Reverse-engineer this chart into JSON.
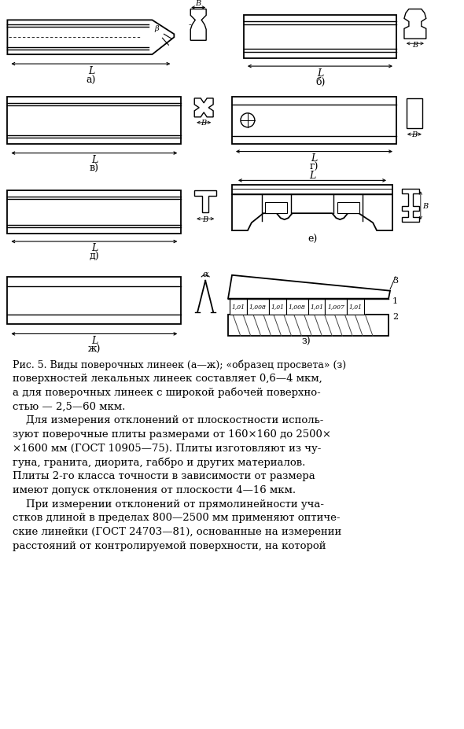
{
  "fig_width": 5.9,
  "fig_height": 9.28,
  "dpi": 100,
  "bg_color": "#ffffff",
  "caption": "Рис. 5. Виды поверочных линеек (а—ж); «образец просвета» (з)",
  "body_lines": [
    "поверхностей лекальных линеек составляет 0,6—4 мкм,",
    "а для поверочных линеек с широкой рабочей поверхно-",
    "стью — 2,5—60 мкм.",
    "    Для измерения отклонений от плоскостности исполь-",
    "зуют поверочные плиты размерами от 160×160 до 2500×",
    "×1600 мм (ГОСТ 10905—75). Плиты изготовляют из чу-",
    "гуна, гранита, диорита, габбро и других материалов.",
    "Плиты 2-го класса точности в зависимости от размера",
    "имеют допуск отклонения от плоскости 4—16 мкм.",
    "    При измерении отклонений от прямолинейности уча-",
    "стков длиной в пределах 800—2500 мм применяют оптиче-",
    "ские линейки (ГОСТ 24703—81), основанные на измерении",
    "расстояний от контролируемой поверхности, на которой"
  ],
  "bold_words": [
    "поверочные плиты",
    "оптиче-",
    "ские линейки"
  ]
}
